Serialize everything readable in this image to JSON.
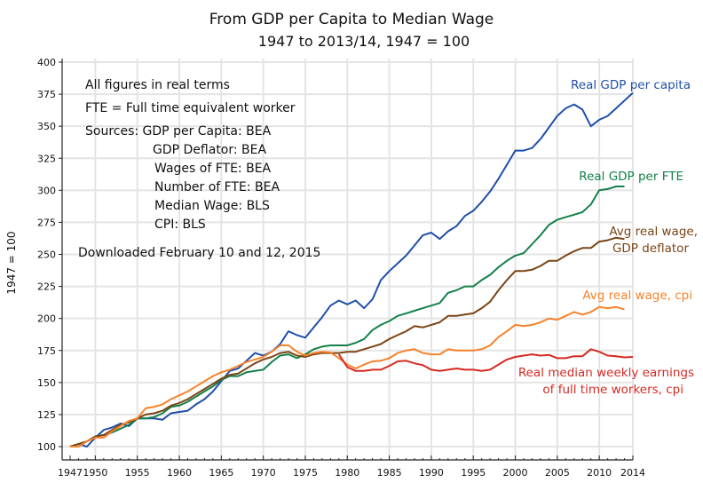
{
  "chart_data": {
    "type": "line",
    "title": "From GDP per Capita to Median Wage",
    "subtitle": "1947 to 2013/14, 1947 = 100",
    "xlabel": "",
    "ylabel": "1947 = 100",
    "xlim": [
      1947,
      2014
    ],
    "ylim": [
      90,
      400
    ],
    "grid": true,
    "x_ticks": [
      1947,
      1950,
      1955,
      1960,
      1965,
      1970,
      1975,
      1980,
      1985,
      1990,
      1995,
      2000,
      2005,
      2010,
      2014
    ],
    "y_ticks": [
      100,
      125,
      150,
      175,
      200,
      225,
      250,
      275,
      300,
      325,
      350,
      375,
      400
    ],
    "notes": [
      "All figures in real terms",
      "FTE = Full time equivalent worker",
      "Sources:  GDP per Capita:  BEA",
      "GDP Deflator:  BEA",
      "Wages of FTE:  BEA",
      "Number of FTE:  BEA",
      "Median Wage:  BLS",
      "CPI:  BLS",
      "Downloaded February 10 and 12, 2015"
    ],
    "series": [
      {
        "name": "Real GDP per capita",
        "label_lines": [
          "Real GDP per capita"
        ],
        "color": "#1f4fa8",
        "start": 1947,
        "values": [
          100,
          102,
          100,
          107,
          113,
          115,
          118,
          116,
          122,
          122,
          122,
          121,
          126,
          127,
          128,
          133,
          137,
          143,
          151,
          159,
          161,
          167,
          173,
          171,
          174,
          180,
          190,
          187,
          185,
          193,
          201,
          210,
          214,
          211,
          214,
          208,
          215,
          230,
          237,
          243,
          249,
          257,
          265,
          267,
          262,
          268,
          272,
          280,
          284,
          291,
          299,
          309,
          320,
          331,
          331,
          333,
          340,
          349,
          358,
          364,
          367,
          363,
          350,
          355,
          358,
          364,
          370,
          376
        ]
      },
      {
        "name": "Real GDP per FTE",
        "label_lines": [
          "Real GDP per FTE"
        ],
        "color": "#14804a",
        "start": 1947,
        "values": [
          100,
          102,
          104,
          108,
          109,
          111,
          114,
          117,
          122,
          122,
          123,
          126,
          131,
          132,
          135,
          139,
          143,
          147,
          152,
          155,
          155,
          158,
          159,
          160,
          166,
          171,
          172,
          169,
          172,
          176,
          178,
          179,
          179,
          179,
          181,
          184,
          191,
          195,
          198,
          202,
          204,
          206,
          208,
          210,
          212,
          220,
          222,
          225,
          225,
          230,
          234,
          240,
          245,
          249,
          251,
          258,
          265,
          273,
          277,
          279,
          281,
          283,
          289,
          300,
          301,
          303,
          303
        ]
      },
      {
        "name": "Avg real wage, GDP deflator",
        "label_lines": [
          "Avg real wage,",
          "GDP deflator"
        ],
        "color": "#7a4516",
        "start": 1947,
        "values": [
          100,
          102,
          104,
          108,
          109,
          113,
          117,
          119,
          122,
          125,
          126,
          128,
          132,
          134,
          137,
          141,
          145,
          149,
          153,
          156,
          157,
          161,
          165,
          168,
          170,
          173,
          174,
          171,
          170,
          172,
          173,
          173,
          173,
          174,
          174,
          176,
          178,
          180,
          184,
          187,
          190,
          194,
          193,
          195,
          197,
          202,
          202,
          203,
          204,
          208,
          213,
          222,
          230,
          237,
          237,
          238,
          241,
          245,
          245,
          249,
          252.5,
          255,
          255,
          260,
          261,
          263,
          262
        ]
      },
      {
        "name": "Avg real wage, cpi",
        "label_lines": [
          "Avg real wage, cpi"
        ],
        "color": "#f7822a",
        "start": 1947,
        "values": [
          100,
          100,
          104,
          107,
          107,
          112,
          116,
          120,
          122,
          130,
          131,
          133,
          137,
          140,
          143,
          147,
          151,
          155,
          158,
          160,
          163,
          166,
          168,
          170,
          174,
          179,
          179,
          174,
          171,
          173,
          174,
          173.5,
          169,
          164,
          161,
          164,
          166.5,
          167,
          169,
          173,
          175,
          176,
          173,
          172,
          172,
          176,
          175,
          175,
          175,
          176,
          179,
          185.5,
          190,
          195,
          194,
          195,
          197,
          200,
          199,
          202,
          205,
          203,
          205,
          209,
          208,
          209,
          207
        ]
      },
      {
        "name": "Real median weekly earnings of full time workers, cpi",
        "label_lines": [
          "Real median weekly earnings",
          "of full time workers, cpi"
        ],
        "color": "#d42a22",
        "start": 1979,
        "values": [
          172,
          162,
          159,
          159,
          160,
          160,
          163,
          166.5,
          167,
          165,
          163.5,
          160,
          159,
          160,
          161,
          160,
          160,
          159,
          160,
          164,
          168,
          170,
          171,
          172,
          171,
          171.6,
          169,
          169,
          170.5,
          170.5,
          176,
          174,
          171,
          170.5,
          169.6,
          170
        ]
      }
    ]
  }
}
